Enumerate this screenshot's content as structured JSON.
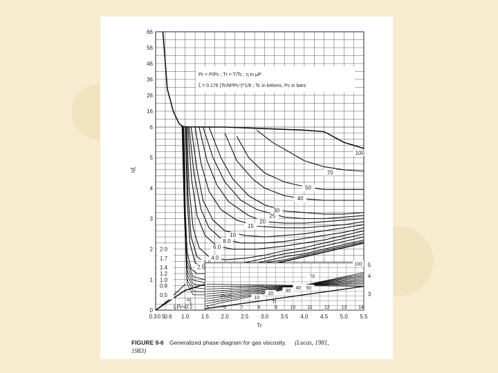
{
  "chart_data": {
    "type": "line",
    "title": "",
    "xlabel": "Tr",
    "ylabel": "ηξ",
    "x_ticks": [
      "0.3",
      "0.5",
      "0.6",
      "1.0",
      "1.5",
      "2.0",
      "2.5",
      "3.0",
      "3.5",
      "4.0",
      "4.5",
      "5.0",
      "5.5"
    ],
    "y_ticks": [
      "66",
      "56",
      "46",
      "36",
      "26",
      "16",
      "6",
      "5",
      "4",
      "3",
      "2",
      "1",
      "0"
    ],
    "notes": [
      "Pr = P/Pc ;  Tr = T/Tc ;  η in μP",
      "ξ = 0.176 (Tc/M³Pc⁴)^1/6 ;  Tc in kelvins,  Pc in bars"
    ],
    "main_curve_labels": [
      "100",
      "70",
      "50",
      "40",
      "30",
      "25",
      "20",
      "15",
      "10",
      "8.0",
      "6.0",
      "4.0",
      "3.0",
      "2.5"
    ],
    "left_curve_labels": [
      "2.0",
      "1.7",
      "1.4",
      "1.2",
      "1.0",
      "0.8",
      "0.5"
    ],
    "lp_label": "LPr≈0",
    "omega_label": "ω",
    "omega_sub": "F",
    "omega_sub2": "2",
    "inset": {
      "x_ticks": [
        "5",
        "6",
        "7",
        "8",
        "9",
        "10",
        "11",
        "12",
        "13",
        "14"
      ],
      "y_ticks": [
        "5",
        "4",
        "3"
      ],
      "x_label": "Tr",
      "pr_label": "Pr≈0",
      "curve_labels": [
        "100",
        "70",
        "50",
        "40",
        "30",
        "20",
        "10"
      ]
    },
    "series": [
      {
        "name": "100",
        "x": [
          0.9,
          1.1,
          1.5,
          2.0,
          3.0,
          4.0,
          4.5,
          5.0,
          5.5
        ],
        "y": [
          6.3,
          6.15,
          6.05,
          6.0,
          5.95,
          5.9,
          5.85,
          5.5,
          5.3
        ]
      },
      {
        "name": "70",
        "x": [
          2.8,
          3.2,
          4.0,
          4.5,
          5.0,
          5.5
        ],
        "y": [
          5.9,
          5.5,
          4.9,
          4.7,
          4.6,
          4.55
        ]
      },
      {
        "name": "50",
        "x": [
          2.3,
          2.6,
          3.0,
          3.5,
          4.0,
          4.5,
          5.0,
          5.5
        ],
        "y": [
          5.7,
          5.0,
          4.5,
          4.2,
          4.05,
          3.95,
          3.95,
          3.95
        ]
      },
      {
        "name": "40",
        "x": [
          2.0,
          2.3,
          2.7,
          3.0,
          3.5,
          4.0,
          4.5,
          5.0,
          5.5
        ],
        "y": [
          5.8,
          4.9,
          4.3,
          4.0,
          3.75,
          3.65,
          3.6,
          3.6,
          3.6
        ]
      },
      {
        "name": "30",
        "x": [
          1.6,
          1.9,
          2.2,
          2.6,
          3.0,
          3.5,
          4.0,
          4.5,
          5.0,
          5.5
        ],
        "y": [
          6.0,
          5.0,
          4.3,
          3.75,
          3.45,
          3.25,
          3.2,
          3.15,
          3.15,
          3.2
        ]
      },
      {
        "name": "25",
        "x": [
          1.45,
          1.7,
          2.0,
          2.4,
          2.8,
          3.5,
          4.0,
          4.5,
          5.0,
          5.5
        ],
        "y": [
          6.0,
          5.0,
          4.2,
          3.6,
          3.3,
          3.05,
          3.0,
          3.0,
          3.05,
          3.1
        ]
      },
      {
        "name": "20",
        "x": [
          1.35,
          1.55,
          1.8,
          2.1,
          2.6,
          3.0,
          3.5,
          4.0,
          4.5,
          5.0,
          5.5
        ],
        "y": [
          6.0,
          4.9,
          4.1,
          3.55,
          3.1,
          2.9,
          2.85,
          2.85,
          2.9,
          2.95,
          3.0
        ]
      },
      {
        "name": "15",
        "x": [
          1.25,
          1.4,
          1.6,
          1.9,
          2.3,
          2.8,
          3.5,
          4.0,
          4.5,
          5.0,
          5.5
        ],
        "y": [
          6.0,
          4.8,
          3.9,
          3.3,
          2.95,
          2.75,
          2.7,
          2.7,
          2.75,
          2.8,
          2.9
        ]
      },
      {
        "name": "10",
        "x": [
          1.15,
          1.3,
          1.45,
          1.7,
          2.0,
          2.5,
          3.0,
          3.5,
          4.0,
          4.5,
          5.0,
          5.5
        ],
        "y": [
          6.0,
          4.6,
          3.6,
          2.95,
          2.6,
          2.45,
          2.4,
          2.45,
          2.5,
          2.6,
          2.7,
          2.8
        ]
      },
      {
        "name": "8.0",
        "x": [
          1.1,
          1.22,
          1.4,
          1.6,
          1.9,
          2.4,
          3.0,
          3.5,
          4.0,
          4.5,
          5.0,
          5.5
        ],
        "y": [
          6.0,
          4.5,
          3.3,
          2.7,
          2.35,
          2.2,
          2.2,
          2.25,
          2.35,
          2.45,
          2.55,
          2.7
        ]
      },
      {
        "name": "6.0",
        "x": [
          1.07,
          1.16,
          1.3,
          1.5,
          1.8,
          2.2,
          2.8,
          3.5,
          4.0,
          4.5,
          5.0,
          5.5
        ],
        "y": [
          6.0,
          4.3,
          3.1,
          2.45,
          2.1,
          2.0,
          2.0,
          2.1,
          2.2,
          2.3,
          2.45,
          2.6
        ]
      },
      {
        "name": "4.0",
        "x": [
          1.04,
          1.1,
          1.2,
          1.35,
          1.6,
          2.0,
          2.5,
          3.0,
          3.5,
          4.0,
          4.5,
          5.0,
          5.5
        ],
        "y": [
          6.0,
          4.0,
          2.7,
          2.05,
          1.75,
          1.65,
          1.7,
          1.8,
          1.95,
          2.05,
          2.2,
          2.35,
          2.5
        ]
      },
      {
        "name": "3.0",
        "x": [
          1.02,
          1.07,
          1.15,
          1.3,
          1.55,
          2.0,
          2.5,
          3.0,
          3.5,
          4.0,
          4.5,
          5.0,
          5.5
        ],
        "y": [
          6.0,
          3.8,
          2.4,
          1.75,
          1.5,
          1.5,
          1.55,
          1.7,
          1.85,
          1.95,
          2.1,
          2.25,
          2.4
        ]
      },
      {
        "name": "2.5",
        "x": [
          1.01,
          1.05,
          1.12,
          1.25,
          1.5,
          2.0,
          2.5,
          3.0,
          3.5,
          4.0,
          4.5,
          5.0,
          5.5
        ],
        "y": [
          6.0,
          3.6,
          2.2,
          1.55,
          1.35,
          1.35,
          1.45,
          1.6,
          1.75,
          1.85,
          2.0,
          2.15,
          2.3
        ]
      },
      {
        "name": "2.0",
        "x": [
          0.95,
          1.0,
          1.05,
          1.15,
          1.3,
          1.6,
          2.0,
          2.5,
          3.0,
          3.5,
          4.0,
          4.5,
          5.0,
          5.5
        ],
        "y": [
          6.0,
          3.3,
          1.9,
          1.35,
          1.2,
          1.2,
          1.25,
          1.4,
          1.55,
          1.65,
          1.8,
          1.95,
          2.1,
          2.25
        ]
      },
      {
        "name": "Pr≈0",
        "x": [
          0.3,
          1.0,
          2.0,
          3.0,
          4.0,
          5.0,
          5.5
        ],
        "y": [
          0.0,
          0.65,
          1.05,
          1.45,
          1.75,
          2.05,
          2.2
        ]
      },
      {
        "name": "LPr≈0",
        "x": [
          0.3,
          0.55,
          0.8,
          1.0
        ],
        "y": [
          0.0,
          0.3,
          0.6,
          0.85
        ]
      },
      {
        "name": "left_boundary",
        "x": [
          0.45,
          0.55,
          0.7,
          0.85,
          0.95,
          1.0
        ],
        "y": [
          66,
          30,
          16,
          8,
          6.3,
          6.1
        ]
      }
    ]
  },
  "caption": {
    "figure": "FIGURE 9-6",
    "text": "Generalized phase diagram for gas viscosity.",
    "reference": "(Lucas, 1981,",
    "year": "1983)"
  }
}
